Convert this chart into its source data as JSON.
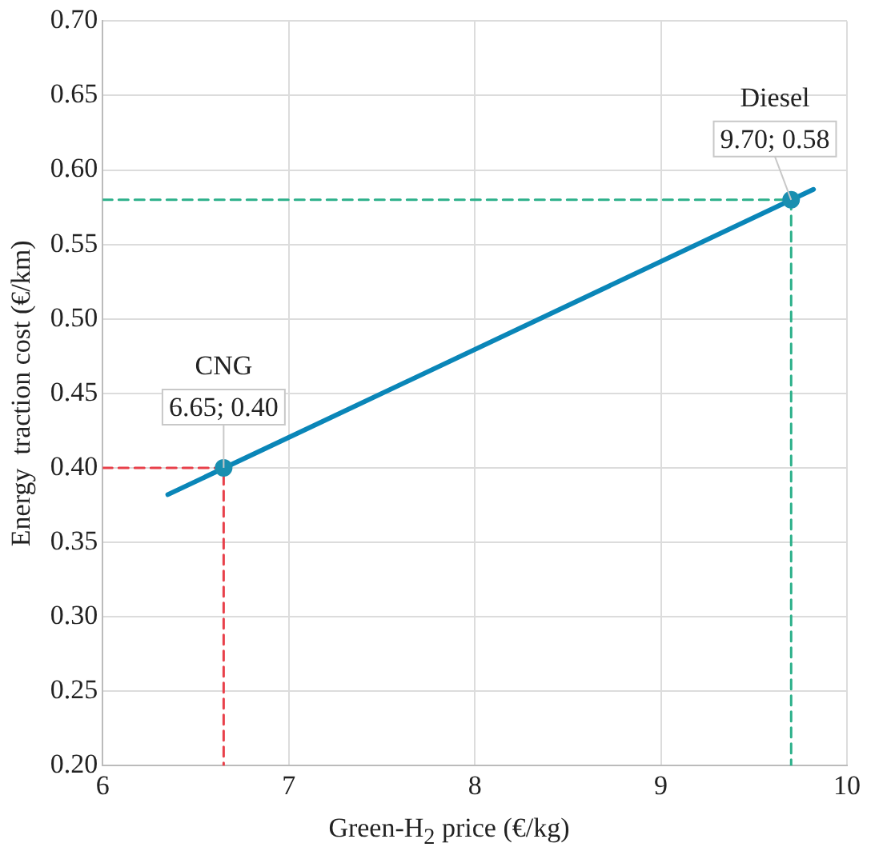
{
  "chart_data": {
    "type": "line",
    "xlabel": "Green-H$_{2}$ price (€/kg)",
    "ylabel": "Energy  traction cost (€/km)",
    "xlim": [
      6,
      10
    ],
    "xticks": [
      6,
      7,
      8,
      9,
      10
    ],
    "ylim": [
      0.2,
      0.7
    ],
    "yticks": [
      {
        "value": 0.2,
        "label": "0.20"
      },
      {
        "value": 0.25,
        "label": "0.25"
      },
      {
        "value": 0.3,
        "label": "0.30"
      },
      {
        "value": 0.35,
        "label": "0.35"
      },
      {
        "value": 0.4,
        "label": "0.40"
      },
      {
        "value": 0.45,
        "label": "0.45"
      },
      {
        "value": 0.5,
        "label": "0.50"
      },
      {
        "value": 0.55,
        "label": "0.55"
      },
      {
        "value": 0.6,
        "label": "0.60"
      },
      {
        "value": 0.65,
        "label": "0.65"
      },
      {
        "value": 0.7,
        "label": "0.70"
      }
    ],
    "grid": true,
    "legend": false,
    "series": [
      {
        "color": "#e8404a",
        "x": [
          6,
          6.65,
          6.65
        ],
        "values": [
          0.4,
          0.4,
          0.2
        ],
        "line_style": "dashed",
        "marker": "none"
      },
      {
        "color": "#2cb08a",
        "x": [
          6,
          9.7,
          9.7
        ],
        "values": [
          0.58,
          0.58,
          0.2
        ],
        "line_style": "dashed",
        "marker": "none"
      },
      {
        "color": "#0a86b8",
        "x": [
          6.35,
          9.82
        ],
        "values": [
          0.382,
          0.587
        ],
        "line_style": "solid",
        "marker": "none"
      },
      {
        "type": "scatter",
        "color": "#1a8fb0",
        "x": [
          6.65,
          9.7
        ],
        "values": [
          0.4,
          0.58
        ],
        "marker": "circle",
        "value_labels": [
          "6.65; 0.40",
          "9.70; 0.58"
        ]
      }
    ],
    "annotations": [
      "CNG",
      "Diesel"
    ]
  }
}
